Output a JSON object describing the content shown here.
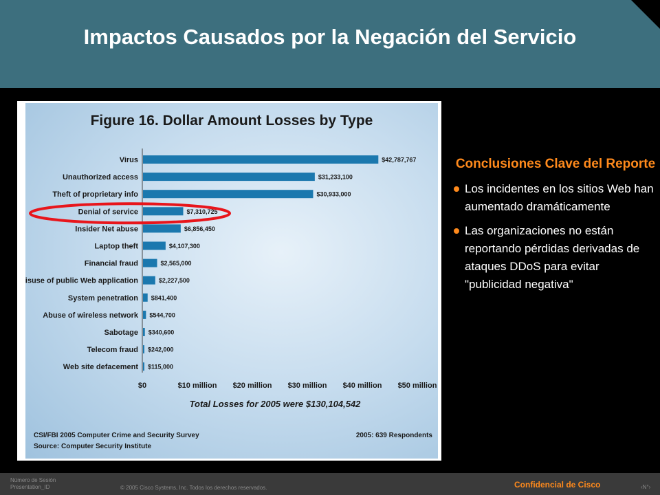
{
  "slide": {
    "title": "Impactos Causados por la Negación del Servicio",
    "conclusions_title": "Conclusiones Clave del Reporte",
    "bullets": [
      "Los incidentes en los sitios Web han aumentado dramáticamente",
      "Las organizaciones no están reportando pérdidas derivadas de ataques DDoS para evitar \"publicidad negativa\""
    ],
    "accent_color": "#ff8a1c",
    "header_color": "#3d6f7e"
  },
  "footer": {
    "session_line1": "Número de Sesión",
    "session_line2": "Presentation_ID",
    "copyright": "© 2005 Cisco Systems, Inc. Todos los derechos reservados.",
    "confidential": "Confidencial de Cisco",
    "page": "‹N°›"
  },
  "chart_data": {
    "type": "bar",
    "orientation": "horizontal",
    "title": "Figure 16. Dollar Amount Losses by Type",
    "categories": [
      "Virus",
      "Unauthorized access",
      "Theft of proprietary info",
      "Denial of service",
      "Insider Net abuse",
      "Laptop theft",
      "Financial fraud",
      "Misuse of public Web application",
      "System penetration",
      "Abuse of wireless network",
      "Sabotage",
      "Telecom fraud",
      "Web site defacement"
    ],
    "values": [
      42787767,
      31233100,
      30933000,
      7310725,
      6856450,
      4107300,
      2565000,
      2227500,
      841400,
      544700,
      340600,
      242000,
      115000
    ],
    "value_labels": [
      "$42,787,767",
      "$31,233,100",
      "$30,933,000",
      "$7,310,725",
      "$6,856,450",
      "$4,107,300",
      "$2,565,000",
      "$2,227,500",
      "$841,400",
      "$544,700",
      "$340,600",
      "$242,000",
      "$115,000"
    ],
    "x_ticks": [
      "$0",
      "$10 million",
      "$20 million",
      "$30 million",
      "$40 million",
      "$50 million"
    ],
    "xlim": [
      0,
      50000000
    ],
    "total_note": "Total Losses for 2005 were $130,104,542",
    "source_left_1": "CSI/FBI 2005 Computer Crime and Security Survey",
    "source_left_2": "Source: Computer Security Institute",
    "source_right": "2005: 639 Respondents",
    "highlighted_category": "Denial of service",
    "bar_color": "#1b78ae",
    "highlight_color": "#e8151b"
  }
}
